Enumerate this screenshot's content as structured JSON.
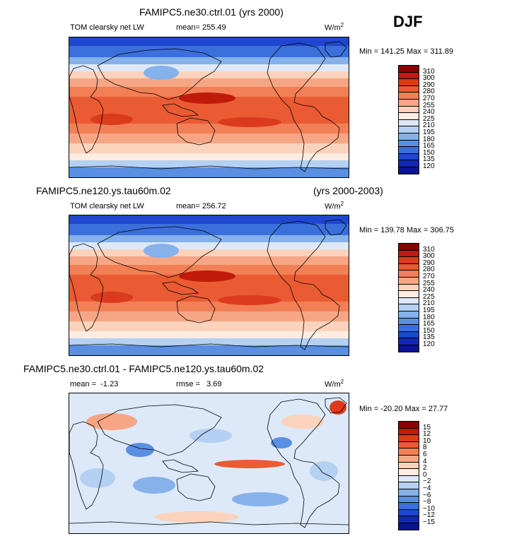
{
  "season": "DJF",
  "chart_data": [
    {
      "type": "heatmap",
      "title": "FAMIPC5.ne30.ctrl.01 (yrs 2000)",
      "variable": "TOM clearsky net LW",
      "mean_label": "mean=",
      "mean_value": "255.49",
      "units": "W/m",
      "units_exp": "2",
      "min_label": "Min =",
      "min_value": "141.25",
      "max_label": "Max =",
      "max_value": "311.89",
      "levels": [
        "310",
        "300",
        "290",
        "280",
        "270",
        "255",
        "240",
        "225",
        "210",
        "195",
        "180",
        "165",
        "150",
        "135",
        "120"
      ],
      "colors": [
        "#8b0000",
        "#c01a0a",
        "#db3a1c",
        "#ea5b34",
        "#f27f56",
        "#f6a685",
        "#fbd2bb",
        "#fdece2",
        "#dde9f8",
        "#b4d0f2",
        "#86b1ea",
        "#5a8fe2",
        "#3a6fdc",
        "#1f46cf",
        "#1228b4",
        "#0a1490"
      ]
    },
    {
      "type": "heatmap",
      "title_left": "FAMIPC5.ne120.ys.tau60m.02",
      "title_right": "(yrs 2000-2003)",
      "variable": "TOM clearsky net LW",
      "mean_label": "mean=",
      "mean_value": "256.72",
      "units": "W/m",
      "units_exp": "2",
      "min_label": "Min =",
      "min_value": "139.78",
      "max_label": "Max =",
      "max_value": "306.75",
      "levels": [
        "310",
        "300",
        "290",
        "280",
        "270",
        "255",
        "240",
        "225",
        "210",
        "195",
        "180",
        "165",
        "150",
        "135",
        "120"
      ],
      "colors": [
        "#8b0000",
        "#c01a0a",
        "#db3a1c",
        "#ea5b34",
        "#f27f56",
        "#f6a685",
        "#fbd2bb",
        "#fdece2",
        "#dde9f8",
        "#b4d0f2",
        "#86b1ea",
        "#5a8fe2",
        "#3a6fdc",
        "#1f46cf",
        "#1228b4",
        "#0a1490"
      ]
    },
    {
      "type": "heatmap",
      "title": "FAMIPC5.ne30.ctrl.01 - FAMIPC5.ne120.ys.tau60m.02",
      "mean_label": "mean =",
      "mean_value": "-1.23",
      "rmse_label": "rmse =",
      "rmse_value": "3.69",
      "units": "W/m",
      "units_exp": "2",
      "min_label": "Min =",
      "min_value": "-20.20",
      "max_label": "Max =",
      "max_value": "27.77",
      "levels": [
        "15",
        "12",
        "10",
        "8",
        "6",
        "4",
        "2",
        "0",
        "−2",
        "−4",
        "−6",
        "−8",
        "−10",
        "−12",
        "−15"
      ],
      "colors": [
        "#8b0000",
        "#c01a0a",
        "#db3a1c",
        "#ea5b34",
        "#f27f56",
        "#f6a685",
        "#fbd2bb",
        "#fdece2",
        "#dde9f8",
        "#b4d0f2",
        "#86b1ea",
        "#5a8fe2",
        "#3a6fdc",
        "#1f46cf",
        "#1228b4",
        "#0a1490"
      ]
    }
  ]
}
